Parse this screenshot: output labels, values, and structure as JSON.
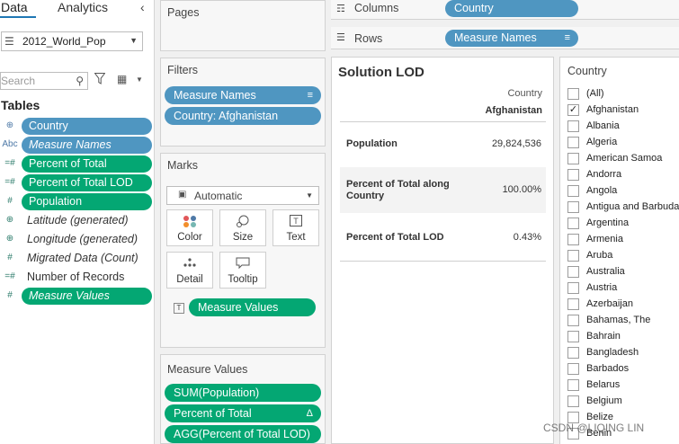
{
  "data_pane": {
    "tabs": [
      "Data",
      "Analytics"
    ],
    "collapse_icon": "chevron-left-icon",
    "data_source": "2012_World_Pop",
    "search_placeholder": "Search",
    "tables_heading": "Tables",
    "fields": [
      {
        "name": "Country",
        "icon": "⊕",
        "style": "pill-blue",
        "italic": false
      },
      {
        "name": "Measure Names",
        "icon": "Abc",
        "style": "pill-blue",
        "italic": true
      },
      {
        "name": "Percent of Total",
        "icon": "=#",
        "style": "pill-green",
        "italic": false
      },
      {
        "name": "Percent of Total LOD",
        "icon": "=#",
        "style": "pill-green",
        "italic": false
      },
      {
        "name": "Population",
        "icon": "#",
        "style": "pill-green",
        "italic": false
      },
      {
        "name": "Latitude (generated)",
        "icon": "⊕",
        "style": "plain",
        "italic": true
      },
      {
        "name": "Longitude (generated)",
        "icon": "⊕",
        "style": "plain",
        "italic": true
      },
      {
        "name": "Migrated Data (Count)",
        "icon": "#",
        "style": "plain",
        "italic": true
      },
      {
        "name": "Number of Records",
        "icon": "=#",
        "style": "plain",
        "italic": false
      },
      {
        "name": "Measure Values",
        "icon": "#",
        "style": "pill-green",
        "italic": true
      }
    ]
  },
  "cards": {
    "pages_title": "Pages",
    "filters_title": "Filters",
    "filters": [
      "Measure Names",
      "Country: Afghanistan"
    ],
    "marks_title": "Marks",
    "marks_type": "Automatic",
    "mark_buttons": [
      {
        "label": "Color",
        "icon": "color-dots-icon"
      },
      {
        "label": "Size",
        "icon": "size-icon"
      },
      {
        "label": "Text",
        "icon": "text-icon"
      },
      {
        "label": "Detail",
        "icon": "detail-icon"
      },
      {
        "label": "Tooltip",
        "icon": "tooltip-icon"
      }
    ],
    "mark_field": "Measure Values",
    "measure_values_title": "Measure Values",
    "measure_values": [
      "SUM(Population)",
      "Percent of Total",
      "AGG(Percent of Total LOD)"
    ]
  },
  "shelves": {
    "columns_label": "Columns",
    "columns_pill": "Country",
    "rows_label": "Rows",
    "rows_pill": "Measure Names"
  },
  "view": {
    "title": "Solution LOD",
    "column_header": "Country",
    "column_value": "Afghanistan",
    "rows": [
      {
        "name": "Population",
        "value": "29,824,536"
      },
      {
        "name": "Percent of Total along Country",
        "value": "100.00%"
      },
      {
        "name": "Percent of Total LOD",
        "value": "0.43%"
      }
    ]
  },
  "country_filter": {
    "title": "Country",
    "items": [
      {
        "label": "(All)",
        "checked": false
      },
      {
        "label": "Afghanistan",
        "checked": true
      },
      {
        "label": "Albania",
        "checked": false
      },
      {
        "label": "Algeria",
        "checked": false
      },
      {
        "label": "American Samoa",
        "checked": false
      },
      {
        "label": "Andorra",
        "checked": false
      },
      {
        "label": "Angola",
        "checked": false
      },
      {
        "label": "Antigua and Barbuda",
        "checked": false
      },
      {
        "label": "Argentina",
        "checked": false
      },
      {
        "label": "Armenia",
        "checked": false
      },
      {
        "label": "Aruba",
        "checked": false
      },
      {
        "label": "Australia",
        "checked": false
      },
      {
        "label": "Austria",
        "checked": false
      },
      {
        "label": "Azerbaijan",
        "checked": false
      },
      {
        "label": "Bahamas, The",
        "checked": false
      },
      {
        "label": "Bahrain",
        "checked": false
      },
      {
        "label": "Bangladesh",
        "checked": false
      },
      {
        "label": "Barbados",
        "checked": false
      },
      {
        "label": "Belarus",
        "checked": false
      },
      {
        "label": "Belgium",
        "checked": false
      },
      {
        "label": "Belize",
        "checked": false
      },
      {
        "label": "Benin",
        "checked": false
      }
    ]
  },
  "watermark": "CSDN @LIQING LIN",
  "colors": {
    "dimension_pill": "#4f96c1",
    "measure_pill": "#04a773"
  }
}
